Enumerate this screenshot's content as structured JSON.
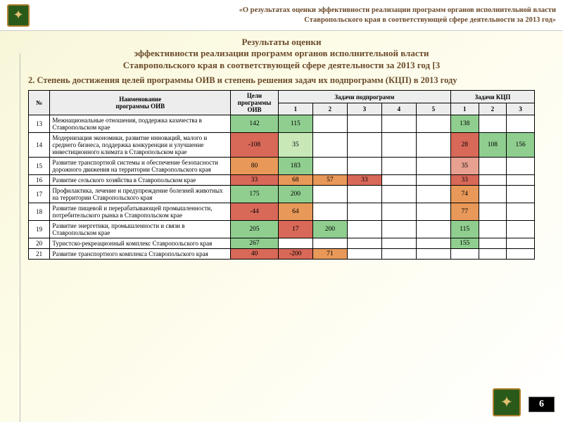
{
  "header": {
    "line1": "«О результатах оценки эффективности реализации программ органов исполнительной власти",
    "line2": "Ставропольского края в соответствующей сфере деятельности за 2013 год»"
  },
  "title": {
    "line1": "Результаты оценки",
    "line2": "эффективности реализации программ органов исполнительной власти",
    "line3": "Ставропольского края в соответствующей сфере деятельности за 2013 год [3"
  },
  "subtitle": "2. Степень достижения целей программы ОИВ и степень решения задач их подпрограмм (КЦП) в 2013 году",
  "table": {
    "col_num": "№",
    "col_name": "Наименование\nпрограммы ОИВ",
    "col_goal": "Цели\nпрограммы\nОИВ",
    "col_sub_group": "Задачи подпрограмм",
    "col_kcp_group": "Задачи КЦП",
    "sub_nums": [
      "1",
      "2",
      "3",
      "4",
      "5"
    ],
    "kcp_nums": [
      "1",
      "2",
      "3"
    ],
    "rows": [
      {
        "n": "13",
        "name": "Межнациональные отношения, поддержка казачества в Ставропольском крае",
        "goal": {
          "v": "142",
          "c": "g"
        },
        "sub": [
          {
            "v": "115",
            "c": "g"
          },
          {
            "v": ""
          },
          {
            "v": ""
          },
          {
            "v": ""
          },
          {
            "v": ""
          }
        ],
        "kcp": [
          {
            "v": "138",
            "c": "g"
          },
          {
            "v": ""
          },
          {
            "v": ""
          }
        ]
      },
      {
        "n": "14",
        "name": "Модернизация экономики, развитие инноваций, малого и среднего бизнеса, поддержка конкуренции и улучшение инвестиционного климата в Ставропольском крае",
        "goal": {
          "v": "-108",
          "c": "r"
        },
        "sub": [
          {
            "v": "35",
            "c": "lg"
          },
          {
            "v": ""
          },
          {
            "v": ""
          },
          {
            "v": ""
          },
          {
            "v": ""
          }
        ],
        "kcp": [
          {
            "v": "28",
            "c": "r"
          },
          {
            "v": "108",
            "c": "g"
          },
          {
            "v": "156",
            "c": "g"
          }
        ]
      },
      {
        "n": "15",
        "name": "Развитие транспортной системы и обеспечение безопасности дорожного движения на территории Ставропольского края",
        "goal": {
          "v": "80",
          "c": "o"
        },
        "sub": [
          {
            "v": "183",
            "c": "g"
          },
          {
            "v": ""
          },
          {
            "v": ""
          },
          {
            "v": ""
          },
          {
            "v": ""
          }
        ],
        "kcp": [
          {
            "v": "35",
            "c": "lr"
          },
          {
            "v": ""
          },
          {
            "v": ""
          }
        ]
      },
      {
        "n": "16",
        "name": "Развитие сельского хозяйства в Ставропольском крае",
        "goal": {
          "v": "33",
          "c": "r"
        },
        "sub": [
          {
            "v": "68",
            "c": "o"
          },
          {
            "v": "57",
            "c": "o"
          },
          {
            "v": "33",
            "c": "r"
          },
          {
            "v": ""
          },
          {
            "v": ""
          }
        ],
        "kcp": [
          {
            "v": "33",
            "c": "r"
          },
          {
            "v": ""
          },
          {
            "v": ""
          }
        ]
      },
      {
        "n": "17",
        "name": "Профилактика, лечение и предупреждение болезней животных на территории Ставропольского края",
        "goal": {
          "v": "175",
          "c": "g"
        },
        "sub": [
          {
            "v": "200",
            "c": "g"
          },
          {
            "v": ""
          },
          {
            "v": ""
          },
          {
            "v": ""
          },
          {
            "v": ""
          }
        ],
        "kcp": [
          {
            "v": "74",
            "c": "o"
          },
          {
            "v": ""
          },
          {
            "v": ""
          }
        ]
      },
      {
        "n": "18",
        "name": "Развитие пищевой и перерабатывающей промышленности, потребительского рынка в Ставропольском крае",
        "goal": {
          "v": "-44",
          "c": "r"
        },
        "sub": [
          {
            "v": "64",
            "c": "o"
          },
          {
            "v": ""
          },
          {
            "v": ""
          },
          {
            "v": ""
          },
          {
            "v": ""
          }
        ],
        "kcp": [
          {
            "v": "77",
            "c": "o"
          },
          {
            "v": ""
          },
          {
            "v": ""
          }
        ]
      },
      {
        "n": "19",
        "name": "Развитие энергетики, промышленности и связи в Ставропольском крае",
        "goal": {
          "v": "205",
          "c": "g"
        },
        "sub": [
          {
            "v": "17",
            "c": "r"
          },
          {
            "v": "200",
            "c": "g"
          },
          {
            "v": ""
          },
          {
            "v": ""
          },
          {
            "v": ""
          }
        ],
        "kcp": [
          {
            "v": "115",
            "c": "g"
          },
          {
            "v": ""
          },
          {
            "v": ""
          }
        ]
      },
      {
        "n": "20",
        "name": "Туристско-рекреационный комплекс Ставропольского края",
        "goal": {
          "v": "267",
          "c": "g"
        },
        "sub": [
          {
            "v": ""
          },
          {
            "v": ""
          },
          {
            "v": ""
          },
          {
            "v": ""
          },
          {
            "v": ""
          }
        ],
        "kcp": [
          {
            "v": "155",
            "c": "g"
          },
          {
            "v": ""
          },
          {
            "v": ""
          }
        ]
      },
      {
        "n": "21",
        "name": "Развитие транспортного комплекса Ставропольского края",
        "goal": {
          "v": "40",
          "c": "r"
        },
        "sub": [
          {
            "v": "-200",
            "c": "r"
          },
          {
            "v": "71",
            "c": "o"
          },
          {
            "v": ""
          },
          {
            "v": ""
          },
          {
            "v": ""
          }
        ],
        "kcp": [
          {
            "v": ""
          },
          {
            "v": ""
          },
          {
            "v": ""
          }
        ]
      }
    ]
  },
  "page_number": "6",
  "colors": {
    "g": "#8fce8f",
    "lg": "#c8e8b8",
    "y": "#f0d878",
    "o": "#e89858",
    "r": "#d86858",
    "lr": "#e8a090"
  }
}
